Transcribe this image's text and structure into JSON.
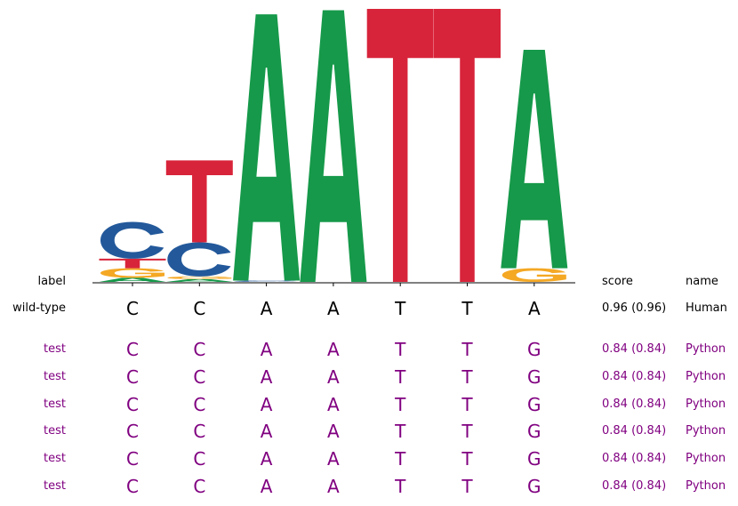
{
  "chart_data": {
    "type": "sequence-logo",
    "alphabet": [
      "A",
      "C",
      "G",
      "T"
    ],
    "colors": {
      "A": "#16994a",
      "C": "#23599b",
      "G": "#f4a824",
      "T": "#d8243a"
    },
    "info_ylim": [
      0,
      2
    ],
    "positions": [
      {
        "stack": [
          {
            "base": "A",
            "bits": 0.03
          },
          {
            "base": "G",
            "bits": 0.07
          },
          {
            "base": "T",
            "bits": 0.07
          },
          {
            "base": "C",
            "bits": 0.27
          }
        ]
      },
      {
        "stack": [
          {
            "base": "A",
            "bits": 0.02
          },
          {
            "base": "G",
            "bits": 0.02
          },
          {
            "base": "C",
            "bits": 0.25
          },
          {
            "base": "T",
            "bits": 0.6
          }
        ]
      },
      {
        "stack": [
          {
            "base": "C",
            "bits": 0.01
          },
          {
            "base": "A",
            "bits": 1.95
          }
        ]
      },
      {
        "stack": [
          {
            "base": "A",
            "bits": 1.99
          }
        ]
      },
      {
        "stack": [
          {
            "base": "T",
            "bits": 2.0
          }
        ]
      },
      {
        "stack": [
          {
            "base": "T",
            "bits": 2.0
          }
        ]
      },
      {
        "stack": [
          {
            "base": "G",
            "bits": 0.1
          },
          {
            "base": "A",
            "bits": 1.6
          }
        ]
      }
    ]
  },
  "table": {
    "header": {
      "label": "label",
      "score": "score",
      "name": "name"
    },
    "rows": [
      {
        "label": "wild-type",
        "seq": [
          "C",
          "C",
          "A",
          "A",
          "T",
          "T",
          "A"
        ],
        "score": "0.96 (0.96)",
        "name": "Human",
        "color": "#000000"
      },
      {
        "label": "test",
        "seq": [
          "C",
          "C",
          "A",
          "A",
          "T",
          "T",
          "G"
        ],
        "score": "0.84 (0.84)",
        "name": "Python",
        "color": "#800080"
      },
      {
        "label": "test",
        "seq": [
          "C",
          "C",
          "A",
          "A",
          "T",
          "T",
          "G"
        ],
        "score": "0.84 (0.84)",
        "name": "Python",
        "color": "#800080"
      },
      {
        "label": "test",
        "seq": [
          "C",
          "C",
          "A",
          "A",
          "T",
          "T",
          "G"
        ],
        "score": "0.84 (0.84)",
        "name": "Python",
        "color": "#800080"
      },
      {
        "label": "test",
        "seq": [
          "C",
          "C",
          "A",
          "A",
          "T",
          "T",
          "G"
        ],
        "score": "0.84 (0.84)",
        "name": "Python",
        "color": "#800080"
      },
      {
        "label": "test",
        "seq": [
          "C",
          "C",
          "A",
          "A",
          "T",
          "T",
          "G"
        ],
        "score": "0.84 (0.84)",
        "name": "Python",
        "color": "#800080"
      },
      {
        "label": "test",
        "seq": [
          "C",
          "C",
          "A",
          "A",
          "T",
          "T",
          "G"
        ],
        "score": "0.84 (0.84)",
        "name": "Python",
        "color": "#800080"
      }
    ]
  }
}
